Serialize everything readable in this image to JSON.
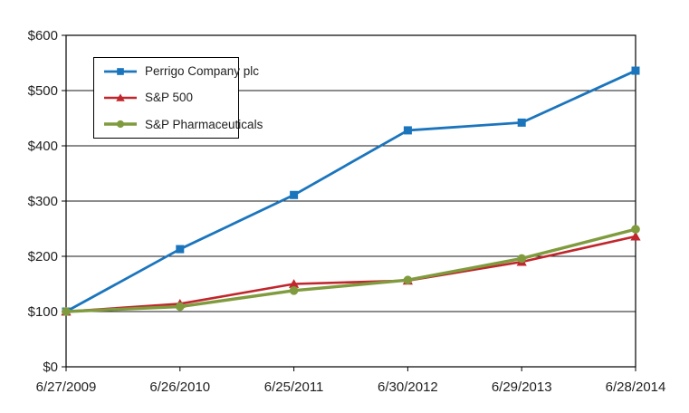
{
  "chart_data": {
    "type": "line",
    "title": "",
    "subtitle": "",
    "xlabel": "",
    "ylabel": "",
    "categories": [
      "6/27/2009",
      "6/26/2010",
      "6/25/2011",
      "6/30/2012",
      "6/29/2013",
      "6/28/2014"
    ],
    "series": [
      {
        "name": "Perrigo Company plc",
        "color": "#1B75BD",
        "marker": "square",
        "values": [
          100,
          213,
          311,
          428,
          442,
          536
        ]
      },
      {
        "name": "S&P 500",
        "color": "#C0262C",
        "marker": "triangle",
        "values": [
          100,
          114,
          150,
          156,
          190,
          236
        ]
      },
      {
        "name": "S&P Pharmaceuticals",
        "color": "#7F9B3E",
        "marker": "circle",
        "values": [
          100,
          109,
          138,
          157,
          196,
          249
        ]
      }
    ],
    "ylim": [
      0,
      600
    ],
    "y_tick_step": 100,
    "y_tick_labels": [
      "$0",
      "$100",
      "$200",
      "$300",
      "$400",
      "$500",
      "$600"
    ],
    "grid": "horizontal",
    "legend_position": "upper-left-inside"
  },
  "colors": {
    "background": "#FFFFFF",
    "plot_border": "#000000",
    "gridline": "#1A1A1A",
    "tick": "#000000",
    "axis_text": "#1F1F1F",
    "legend_border": "#000000"
  }
}
